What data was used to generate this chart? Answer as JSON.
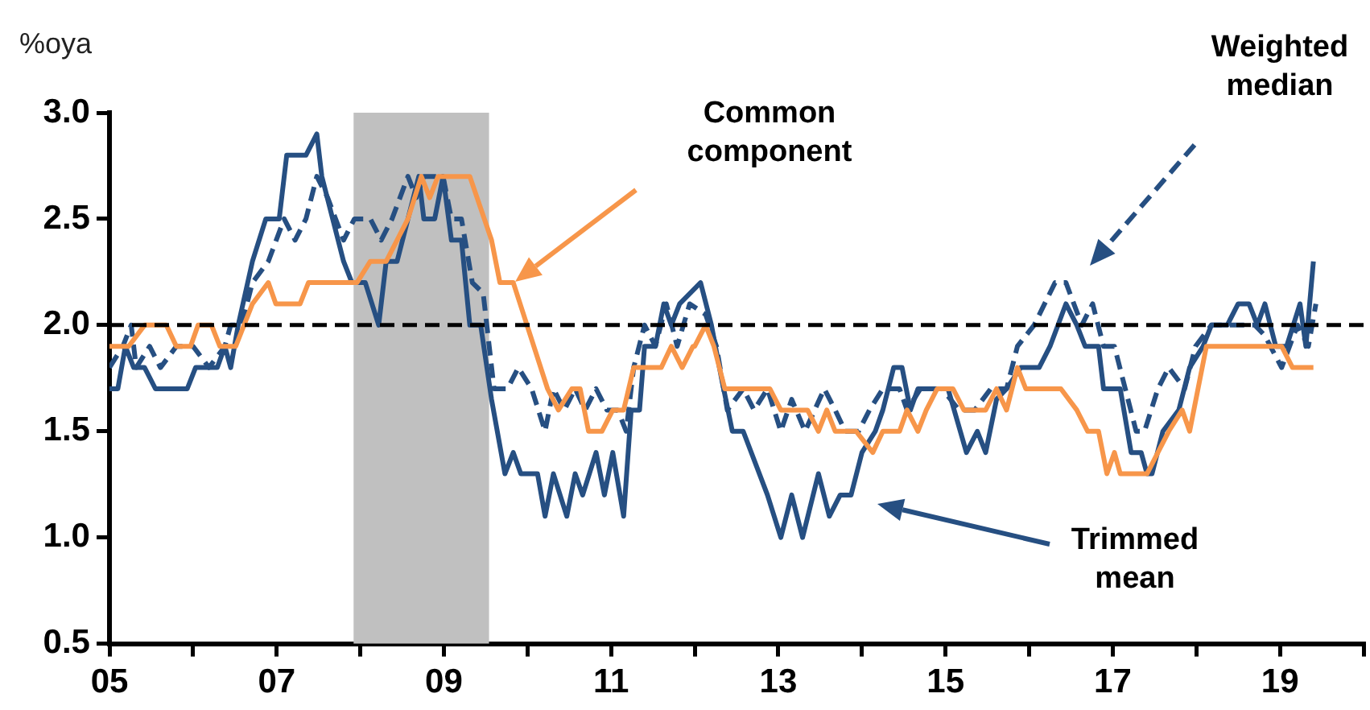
{
  "chart_data": {
    "type": "line",
    "ylabel": "%oya",
    "xlim": [
      2005,
      2020
    ],
    "xticks": [
      {
        "value": 2005,
        "label": "05"
      },
      {
        "value": 2006,
        "label": null
      },
      {
        "value": 2007,
        "label": "07"
      },
      {
        "value": 2008,
        "label": null
      },
      {
        "value": 2009,
        "label": "09"
      },
      {
        "value": 2010,
        "label": null
      },
      {
        "value": 2011,
        "label": "11"
      },
      {
        "value": 2012,
        "label": null
      },
      {
        "value": 2013,
        "label": "13"
      },
      {
        "value": 2014,
        "label": null
      },
      {
        "value": 2015,
        "label": "15"
      },
      {
        "value": 2016,
        "label": null
      },
      {
        "value": 2017,
        "label": "17"
      },
      {
        "value": 2018,
        "label": null
      },
      {
        "value": 2019,
        "label": "19"
      },
      {
        "value": 2020,
        "label": null
      }
    ],
    "ylim": [
      0.5,
      3.0
    ],
    "yticks": [
      {
        "value": 0.5,
        "label": "0.5"
      },
      {
        "value": 1.0,
        "label": "1.0"
      },
      {
        "value": 1.5,
        "label": "1.5"
      },
      {
        "value": 2.0,
        "label": "2.0"
      },
      {
        "value": 2.5,
        "label": "2.5"
      },
      {
        "value": 3.0,
        "label": "3.0"
      }
    ],
    "marker": "none",
    "series": [
      {
        "color": "#f7964a",
        "line_style": "solid",
        "x": [
          2005.0,
          2005.23,
          2005.42,
          2005.68,
          2005.8,
          2005.97,
          2006.06,
          2006.22,
          2006.32,
          2006.51,
          2006.71,
          2006.9,
          2006.99,
          2007.28,
          2007.38,
          2007.96,
          2008.12,
          2008.31,
          2008.44,
          2008.57,
          2008.73,
          2008.83,
          2008.93,
          2009.31,
          2009.57,
          2009.67,
          2009.83,
          2010.24,
          2010.37,
          2010.53,
          2010.63,
          2010.73,
          2010.89,
          2011.02,
          2011.15,
          2011.27,
          2011.6,
          2011.72,
          2011.85,
          2011.98,
          2012.0,
          2012.13,
          2012.23,
          2012.36,
          2012.9,
          2013.03,
          2013.35,
          2013.48,
          2013.58,
          2013.68,
          2013.93,
          2014.13,
          2014.25,
          2014.45,
          2014.54,
          2014.67,
          2014.77,
          2014.9,
          2015.09,
          2015.22,
          2015.48,
          2015.61,
          2015.73,
          2015.86,
          2015.96,
          2016.38,
          2016.57,
          2016.7,
          2016.83,
          2016.93,
          2017.02,
          2017.09,
          2017.41,
          2017.54,
          2017.67,
          2017.83,
          2017.92,
          2018.12,
          2019.02,
          2019.15,
          2019.4
        ],
        "values": [
          1.9,
          1.9,
          2.0,
          2.0,
          1.9,
          1.9,
          2.0,
          2.0,
          1.9,
          1.9,
          2.1,
          2.2,
          2.1,
          2.1,
          2.2,
          2.2,
          2.3,
          2.3,
          2.4,
          2.5,
          2.7,
          2.6,
          2.7,
          2.7,
          2.4,
          2.2,
          2.2,
          1.7,
          1.6,
          1.7,
          1.7,
          1.5,
          1.5,
          1.6,
          1.6,
          1.8,
          1.8,
          1.9,
          1.8,
          1.9,
          1.9,
          2.0,
          1.9,
          1.7,
          1.7,
          1.6,
          1.6,
          1.5,
          1.6,
          1.5,
          1.5,
          1.4,
          1.5,
          1.5,
          1.6,
          1.5,
          1.6,
          1.7,
          1.7,
          1.6,
          1.6,
          1.7,
          1.6,
          1.8,
          1.7,
          1.7,
          1.6,
          1.5,
          1.5,
          1.3,
          1.4,
          1.3,
          1.3,
          1.4,
          1.5,
          1.6,
          1.5,
          1.9,
          1.9,
          1.8,
          1.8
        ]
      },
      {
        "color": "#264f82",
        "line_style": "dashed",
        "x": [
          2005.0,
          2005.16,
          2005.26,
          2005.32,
          2005.48,
          2005.61,
          2005.8,
          2006.0,
          2006.19,
          2006.38,
          2006.45,
          2006.58,
          2006.71,
          2006.9,
          2007.09,
          2007.22,
          2007.35,
          2007.48,
          2007.61,
          2007.8,
          2007.93,
          2008.12,
          2008.25,
          2008.38,
          2008.57,
          2008.67,
          2008.76,
          2008.89,
          2008.99,
          2009.09,
          2009.21,
          2009.34,
          2009.47,
          2009.6,
          2009.76,
          2009.89,
          2010.05,
          2010.21,
          2010.31,
          2010.44,
          2010.57,
          2010.69,
          2010.82,
          2010.95,
          2011.08,
          2011.18,
          2011.27,
          2011.4,
          2011.53,
          2011.66,
          2011.79,
          2011.94,
          2012.13,
          2012.26,
          2012.39,
          2012.58,
          2012.71,
          2012.87,
          2013.03,
          2013.16,
          2013.32,
          2013.55,
          2013.68,
          2013.8,
          2013.96,
          2014.09,
          2014.25,
          2014.45,
          2014.54,
          2014.7,
          2014.96,
          2015.16,
          2015.35,
          2015.54,
          2015.73,
          2015.86,
          2016.06,
          2016.31,
          2016.44,
          2016.63,
          2016.76,
          2016.89,
          2017.02,
          2017.15,
          2017.28,
          2017.38,
          2017.54,
          2017.67,
          2017.86,
          2017.99,
          2018.18,
          2018.5,
          2018.7,
          2018.82,
          2019.02,
          2019.21,
          2019.34,
          2019.43
        ],
        "values": [
          1.8,
          1.9,
          2.0,
          1.8,
          1.9,
          1.8,
          1.9,
          1.9,
          1.8,
          1.9,
          2.0,
          2.0,
          2.2,
          2.3,
          2.5,
          2.4,
          2.5,
          2.7,
          2.6,
          2.4,
          2.5,
          2.5,
          2.4,
          2.5,
          2.7,
          2.6,
          2.7,
          2.7,
          2.7,
          2.5,
          2.5,
          2.2,
          2.15,
          1.7,
          1.7,
          1.8,
          1.7,
          1.5,
          1.7,
          1.6,
          1.7,
          1.6,
          1.7,
          1.6,
          1.6,
          1.5,
          1.8,
          2.0,
          1.9,
          2.1,
          1.9,
          2.1,
          2.05,
          1.9,
          1.6,
          1.7,
          1.6,
          1.7,
          1.5,
          1.65,
          1.5,
          1.7,
          1.6,
          1.5,
          1.5,
          1.6,
          1.7,
          1.7,
          1.6,
          1.7,
          1.7,
          1.6,
          1.6,
          1.7,
          1.7,
          1.9,
          2.0,
          2.2,
          2.2,
          2.0,
          2.1,
          1.9,
          1.9,
          1.7,
          1.5,
          1.5,
          1.7,
          1.8,
          1.7,
          1.9,
          2.0,
          2.0,
          2.0,
          1.95,
          1.8,
          2.0,
          1.9,
          2.1
        ]
      },
      {
        "color": "#264f82",
        "line_style": "solid",
        "x": [
          2005.0,
          2005.1,
          2005.19,
          2005.29,
          2005.42,
          2005.55,
          2005.93,
          2006.03,
          2006.29,
          2006.38,
          2006.45,
          2006.54,
          2006.71,
          2006.87,
          2007.03,
          2007.12,
          2007.35,
          2007.48,
          2007.54,
          2007.67,
          2007.8,
          2007.9,
          2008.06,
          2008.22,
          2008.31,
          2008.44,
          2008.57,
          2008.7,
          2008.76,
          2008.89,
          2008.99,
          2009.09,
          2009.21,
          2009.31,
          2009.44,
          2009.57,
          2009.73,
          2009.83,
          2009.92,
          2010.12,
          2010.21,
          2010.31,
          2010.47,
          2010.57,
          2010.66,
          2010.82,
          2010.92,
          2011.02,
          2011.15,
          2011.24,
          2011.34,
          2011.4,
          2011.53,
          2011.63,
          2011.72,
          2011.82,
          2012.07,
          2012.2,
          2012.32,
          2012.45,
          2012.58,
          2012.87,
          2013.03,
          2013.16,
          2013.29,
          2013.48,
          2013.61,
          2013.74,
          2013.87,
          2014.0,
          2014.16,
          2014.25,
          2014.38,
          2014.48,
          2014.58,
          2014.67,
          2015.03,
          2015.25,
          2015.38,
          2015.48,
          2015.61,
          2015.73,
          2015.9,
          2016.12,
          2016.25,
          2016.44,
          2016.57,
          2016.67,
          2016.83,
          2016.89,
          2017.09,
          2017.22,
          2017.34,
          2017.41,
          2017.47,
          2017.6,
          2017.79,
          2017.92,
          2018.08,
          2018.18,
          2018.37,
          2018.5,
          2018.63,
          2018.73,
          2018.82,
          2018.95,
          2019.08,
          2019.24,
          2019.31,
          2019.4
        ],
        "values": [
          1.7,
          1.7,
          1.9,
          1.8,
          1.8,
          1.7,
          1.7,
          1.8,
          1.8,
          1.9,
          1.8,
          2.0,
          2.3,
          2.5,
          2.5,
          2.8,
          2.8,
          2.9,
          2.7,
          2.5,
          2.3,
          2.2,
          2.2,
          2.0,
          2.3,
          2.3,
          2.5,
          2.7,
          2.5,
          2.5,
          2.7,
          2.4,
          2.4,
          2.0,
          2.0,
          1.65,
          1.3,
          1.4,
          1.3,
          1.3,
          1.1,
          1.3,
          1.1,
          1.3,
          1.2,
          1.4,
          1.2,
          1.4,
          1.1,
          1.6,
          1.6,
          1.9,
          1.9,
          2.1,
          2.0,
          2.1,
          2.2,
          2.0,
          1.75,
          1.5,
          1.5,
          1.2,
          1.0,
          1.2,
          1.0,
          1.3,
          1.1,
          1.2,
          1.2,
          1.4,
          1.5,
          1.6,
          1.8,
          1.8,
          1.6,
          1.7,
          1.7,
          1.4,
          1.5,
          1.4,
          1.65,
          1.7,
          1.8,
          1.8,
          1.9,
          2.1,
          2.0,
          1.9,
          1.9,
          1.7,
          1.7,
          1.4,
          1.4,
          1.3,
          1.3,
          1.5,
          1.6,
          1.8,
          1.9,
          2.0,
          2.0,
          2.1,
          2.1,
          2.0,
          2.1,
          1.9,
          1.9,
          2.1,
          1.9,
          2.3
        ]
      }
    ],
    "ref_lines": [
      {
        "axis": "y",
        "value": 2.0,
        "color": "#000000",
        "line_style": "dashed"
      }
    ],
    "bands": [
      {
        "axis": "x",
        "from": 2007.92,
        "to": 2009.54,
        "color": "#c0c0c0"
      }
    ],
    "annotations": [
      "Common\ncomponent",
      "Weighted\nmedian",
      "Trimmed\nmean"
    ]
  }
}
